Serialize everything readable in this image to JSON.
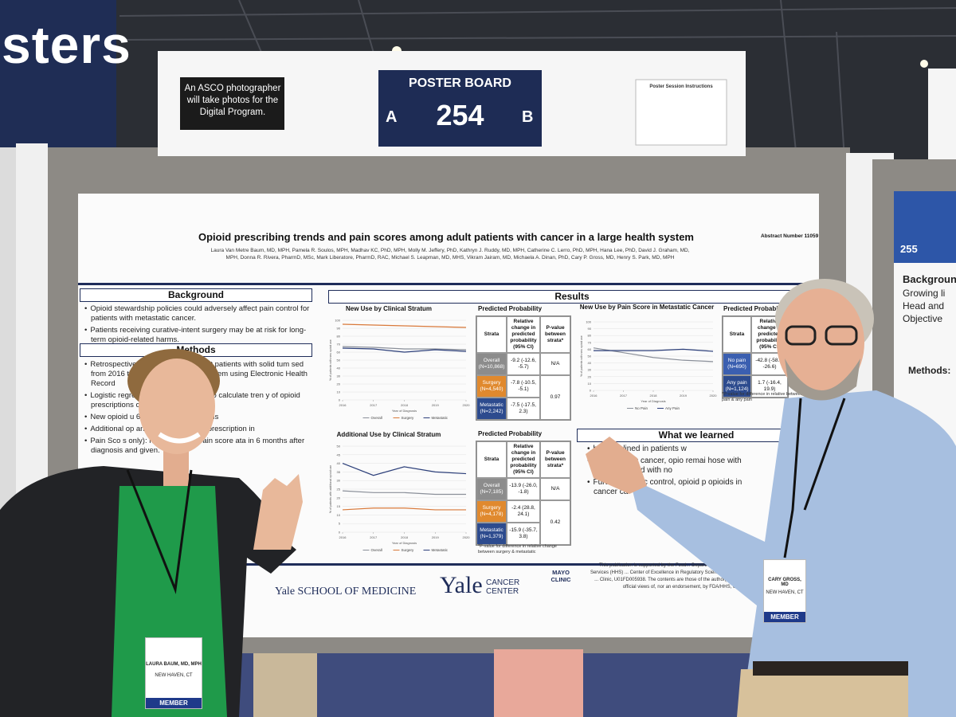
{
  "scene": {
    "banner": "sters",
    "neighbor_number": "255",
    "neighbor_heading": "Backgroun",
    "neighbor_bullets": [
      "Growing li",
      "Head and",
      "Objective"
    ],
    "neighbor_methods": "Methods:"
  },
  "sign": {
    "notice": "An ASCO photographer will take photos for the Digital Program.",
    "board_label": "POSTER BOARD",
    "side_a": "A",
    "number": "254",
    "side_b": "B",
    "instructions_title": "Poster Session Instructions"
  },
  "poster": {
    "title": "Opioid prescribing trends and pain scores among adult patients with cancer in a large health system",
    "abstract_number": "Abstract Number 11059",
    "authors": "Laura Van Metre Baum, MD, MPH, Pamela R. Soulos, MPH, Madhav KC, PhD, MPH, Molly M. Jeffery, PhD, Kathryn J. Ruddy, MD, MPH, Catherine C. Lerro, PhD, MPH, Hana Lee, PhD, David J. Graham, MD, MPH, Donna R. Rivera, PharmD, MSc, Mark Liberatore, PharmD, RAC, Michael S. Leapman, MD, MHS, Vikram Jairam, MD, Michaela A. Dinan, PhD, Cary P. Gross, MD, Henry S. Park, MD, MPH",
    "background": {
      "heading": "Background",
      "bullets": [
        "Opioid stewardship policies could adversely affect pain control for patients with metastatic cancer.",
        "Patients receiving curative-intent surgery may be at risk for long-term opioid-related harms."
      ]
    },
    "methods": {
      "heading": "Methods",
      "bullets": [
        "Retrospective obs opioid-naïve adult patients with solid tum sed from 2016 through 2020 within the ystem using Electronic Health Record",
        "Logistic regre atient demographics, to calculate tren y of opioid prescriptions over time.",
        "New opioid u 6 months after diagnosis",
        "Additional op and additional opioid prescription in",
        "Pain Sco s only): highest of any pain score ata in 6 months after diagnosis and given."
      ]
    },
    "results_heading": "Results",
    "learned_heading": "What we learned",
    "learned_bullets": [
      "bing declined in patients w",
      "In p etastatic cancer, opio remai hose with any p declined with no",
      "Further researc control, opioid p opioids in cancer ca"
    ],
    "charts": [
      {
        "type": "line",
        "title": "New Use by Clinical Stratum",
        "x_label": "Year of Diagnosis",
        "y_label": "% of patients with new opioid use",
        "x": [
          2016,
          2017,
          2018,
          2019,
          2020
        ],
        "xlim": [
          2016,
          2020
        ],
        "xticks": [
          2016,
          2017,
          2018,
          2019,
          2020
        ],
        "ylim": [
          0,
          100
        ],
        "yticks": [
          0,
          10,
          20,
          30,
          40,
          50,
          60,
          70,
          80,
          90,
          100
        ],
        "series": [
          {
            "name": "Overall",
            "color": "#8a8f99",
            "values": [
              67,
              66,
              64,
              64,
              63
            ]
          },
          {
            "name": "Surgery",
            "color": "#d9793a",
            "values": [
              95,
              94,
              93,
              92,
              91
            ]
          },
          {
            "name": "Metastatic",
            "color": "#2c3f7a",
            "values": [
              65,
              64,
              60,
              63,
              61
            ]
          }
        ]
      },
      {
        "type": "line",
        "title": "Additional Use by Clinical Stratum",
        "x_label": "Year of Diagnosis",
        "y_label": "% of patients with additional opioid use",
        "x": [
          2016,
          2017,
          2018,
          2019,
          2020
        ],
        "xlim": [
          2016,
          2020
        ],
        "xticks": [
          2016,
          2017,
          2018,
          2019,
          2020
        ],
        "ylim": [
          0,
          50
        ],
        "yticks": [
          0,
          5,
          10,
          15,
          20,
          25,
          30,
          35,
          40,
          45,
          50
        ],
        "series": [
          {
            "name": "Overall",
            "color": "#8a8f99",
            "values": [
              24,
              23,
              23,
              22,
              22
            ]
          },
          {
            "name": "Surgery",
            "color": "#d9793a",
            "values": [
              13,
              14,
              14,
              13,
              13
            ]
          },
          {
            "name": "Metastatic",
            "color": "#2c3f7a",
            "values": [
              40,
              33,
              38,
              35,
              34
            ]
          }
        ]
      },
      {
        "type": "line",
        "title": "New Use by Pain Score in Metastatic Cancer",
        "x_label": "Year of Diagnosis",
        "y_label": "% of patients with new opioid use",
        "x": [
          2016,
          2017,
          2018,
          2019,
          2020
        ],
        "xlim": [
          2016,
          2020
        ],
        "xticks": [
          2016,
          2017,
          2018,
          2019,
          2020
        ],
        "ylim": [
          0,
          100
        ],
        "yticks": [
          0,
          10,
          20,
          30,
          40,
          50,
          60,
          70,
          80,
          90,
          100
        ],
        "series": [
          {
            "name": "No Pain",
            "color": "#8a8f99",
            "values": [
              62,
              55,
              48,
              44,
              42
            ]
          },
          {
            "name": "Any Pain",
            "color": "#2c3f7a",
            "values": [
              58,
              58,
              58,
              60,
              57
            ]
          }
        ]
      }
    ],
    "tables": [
      {
        "heading": "Predicted Probability",
        "columns": [
          "Strata",
          "Relative change in predicted probability (95% CI)",
          "P-value between strata*"
        ],
        "row_colors": [
          "#8c8c8c",
          "#e0892e",
          "#2d4b8e"
        ],
        "rows": [
          [
            "Overall (N=10,868)",
            "-9.2 (-12.6, -5.7)",
            "N/A"
          ],
          [
            "Surgery (N=4,540)",
            "-7.8 (-10.5, -5.1)"
          ],
          [
            "Metastatic (N=2,242)",
            "-7.5 (-17.5, 2.3)"
          ]
        ],
        "p_value": "0.97"
      },
      {
        "heading": "Predicted Probability",
        "columns": [
          "Strata",
          "Relative change in predicted probability (95% CI)",
          "P-value between strata*"
        ],
        "row_colors": [
          "#8c8c8c",
          "#e0892e",
          "#2d4b8e"
        ],
        "rows": [
          [
            "Overall (N=7,185)",
            "-13.9 (-26.0, -1.8)",
            "N/A"
          ],
          [
            "Surgery (N=4,178)",
            "-2.4 (28.8, 24.1)"
          ],
          [
            "Metastatic (N=1,379)",
            "-15.9 (-35.7, 3.8)"
          ]
        ],
        "p_value": "0.42",
        "note": "*P-value for difference in relative change between surgery & metastatic"
      },
      {
        "heading": "Predicted Probabili",
        "columns": [
          "Strata",
          "Relative change in predicted probability (95% CI)"
        ],
        "row_colors": [
          "#3b5fb0",
          "#2d4b8e"
        ],
        "rows": [
          [
            "No pain (N=690)",
            "-42.8 (-58.9, -26.6)"
          ],
          [
            "Any pain (N=1,124)",
            "1.7 (-16.4, 19.9)"
          ]
        ],
        "note": "*P-value for difference in relative between no pain & any pain"
      }
    ],
    "funding": "This publication is supported by the Food... Department of Health and Human Services (HHS) ... Center of Excellence in Regulatory Science and Innovation grant to ... Clinic, U01FD005938. The contents are those of the author(s) a... represent the official views of, nor an endorsement, by FDA/HHS, o...",
    "footer": {
      "yale_som": "Yale SCHOOL OF MEDICINE",
      "yale": "Yale",
      "cancer_center": "CANCER CENTER",
      "mayo": "MAYO CLINIC"
    }
  },
  "badges": [
    {
      "name": "LAURA BAUM, MD, MPH",
      "city": "NEW HAVEN, CT",
      "type": "MEMBER"
    },
    {
      "name": "CARY GROSS, MD",
      "city": "NEW HAVEN, CT",
      "type": "MEMBER"
    }
  ]
}
